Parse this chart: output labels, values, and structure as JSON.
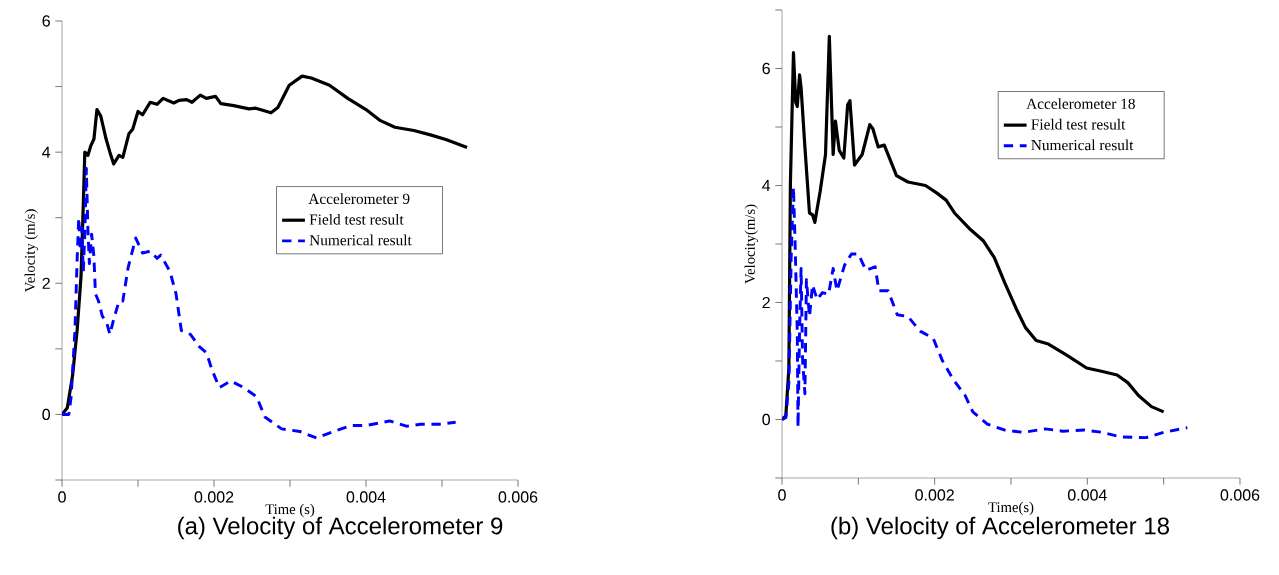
{
  "chart_data": [
    {
      "type": "line",
      "title": "(a) Velocity of Accelerometer 9",
      "xlabel": "Time (s)",
      "ylabel": "Velocity (m/s)",
      "legend_title": "Accelerometer 9",
      "legend": "right",
      "xlim": [
        0,
        0.006
      ],
      "ylim": [
        -1,
        6
      ],
      "xticks": [
        0,
        {
          "value": 0.001,
          "label": null
        },
        0.002,
        {
          "value": 0.003,
          "label": null
        },
        0.004,
        {
          "value": 0.005,
          "label": null
        },
        0.006
      ],
      "yticks": [
        {
          "value": -1,
          "label": null
        },
        0,
        {
          "value": 1,
          "label": null
        },
        2,
        {
          "value": 3,
          "label": null
        },
        4,
        {
          "value": 5,
          "label": null
        },
        6
      ],
      "series": [
        {
          "name": "Field test result",
          "color": "#000000",
          "line_style": "solid",
          "x": [
            0,
            7e-05,
            0.00014,
            0.0002,
            0.00025,
            0.00028,
            0.0003,
            0.00034,
            0.00038,
            0.00042,
            0.00046,
            0.00051,
            0.00058,
            0.00063,
            0.00068,
            0.00075,
            0.0008,
            0.00088,
            0.00093,
            0.001,
            0.00106,
            0.00116,
            0.00125,
            0.00133,
            0.00147,
            0.00154,
            0.00164,
            0.00171,
            0.00182,
            0.0019,
            0.00202,
            0.00209,
            0.00226,
            0.00246,
            0.00255,
            0.00275,
            0.00284,
            0.00299,
            0.00316,
            0.00328,
            0.00352,
            0.00376,
            0.004,
            0.00419,
            0.00438,
            0.00463,
            0.00486,
            0.00506,
            0.00533
          ],
          "values": [
            0,
            0.1,
            0.6,
            1.3,
            2.1,
            3.2,
            4.0,
            3.95,
            4.1,
            4.2,
            4.65,
            4.55,
            4.2,
            4.0,
            3.82,
            3.95,
            3.92,
            4.28,
            4.35,
            4.62,
            4.57,
            4.76,
            4.73,
            4.82,
            4.75,
            4.79,
            4.8,
            4.76,
            4.87,
            4.82,
            4.85,
            4.74,
            4.71,
            4.66,
            4.67,
            4.6,
            4.68,
            5.02,
            5.16,
            5.13,
            5.02,
            4.82,
            4.65,
            4.48,
            4.38,
            4.33,
            4.26,
            4.19,
            4.07
          ]
        },
        {
          "name": "Numerical result",
          "color": "#0000ff",
          "line_style": "dashed",
          "x": [
            0,
            9e-05,
            0.00012,
            0.00017,
            0.0002,
            0.00022,
            0.00024,
            0.00026,
            0.00028,
            0.0003,
            0.00032,
            0.00034,
            0.00036,
            0.00039,
            0.00042,
            0.00044,
            0.00048,
            0.00053,
            0.00059,
            0.00063,
            0.00068,
            0.00075,
            0.0008,
            0.00087,
            0.00097,
            0.00106,
            0.00116,
            0.00125,
            0.0013,
            0.00142,
            0.0015,
            0.00157,
            0.00169,
            0.00181,
            0.0019,
            0.00198,
            0.00207,
            0.00222,
            0.00239,
            0.00256,
            0.00267,
            0.00289,
            0.00313,
            0.00335,
            0.00357,
            0.00381,
            0.004,
            0.00431,
            0.00453,
            0.00472,
            0.00496,
            0.00518
          ],
          "values": [
            0,
            0,
            0.27,
            1.28,
            2.4,
            3.0,
            2.5,
            2.85,
            2.18,
            2.75,
            3.75,
            2.85,
            2.3,
            2.75,
            2.4,
            1.84,
            1.73,
            1.5,
            1.39,
            1.22,
            1.45,
            1.73,
            1.73,
            2.24,
            2.69,
            2.46,
            2.49,
            2.38,
            2.43,
            2.18,
            1.84,
            1.28,
            1.22,
            1.03,
            0.94,
            0.66,
            0.41,
            0.51,
            0.41,
            0.27,
            -0.04,
            -0.22,
            -0.26,
            -0.36,
            -0.26,
            -0.17,
            -0.17,
            -0.1,
            -0.18,
            -0.15,
            -0.15,
            -0.12
          ]
        }
      ]
    },
    {
      "type": "line",
      "title": "(b) Velocity of Accelerometer 18",
      "xlabel": "Time(s)",
      "ylabel": "Velocity(m/s)",
      "legend_title": "Accelerometer 18",
      "legend": "top right",
      "xlim": [
        0,
        0.006
      ],
      "ylim": [
        -1,
        7
      ],
      "xticks": [
        0,
        {
          "value": 0.001,
          "label": null
        },
        0.002,
        {
          "value": 0.003,
          "label": null
        },
        0.004,
        {
          "value": 0.005,
          "label": null
        },
        0.006
      ],
      "yticks": [
        {
          "value": -1,
          "label": null
        },
        0,
        {
          "value": 1,
          "label": null
        },
        2,
        {
          "value": 3,
          "label": null
        },
        4,
        {
          "value": 5,
          "label": null
        },
        6,
        {
          "value": 7,
          "label": null
        }
      ],
      "series": [
        {
          "name": "Field test result",
          "color": "#000000",
          "line_style": "solid",
          "x": [
            0,
            5e-05,
            9e-05,
            0.00011,
            0.00015,
            0.00018,
            0.0002,
            0.00023,
            0.00025,
            0.0003,
            0.00036,
            0.0004,
            0.00043,
            0.0005,
            0.00057,
            0.00062,
            0.00067,
            0.0007,
            0.00075,
            0.00081,
            0.00086,
            0.00089,
            0.00095,
            0.00105,
            0.00115,
            0.00119,
            0.00126,
            0.00134,
            0.0015,
            0.00165,
            0.00188,
            0.00203,
            0.00215,
            0.00226,
            0.00245,
            0.00264,
            0.00278,
            0.00292,
            0.00307,
            0.00319,
            0.00333,
            0.00349,
            0.00373,
            0.00399,
            0.0042,
            0.00439,
            0.00453,
            0.00467,
            0.00484,
            0.005
          ],
          "values": [
            0,
            0.06,
            0.88,
            4.03,
            6.27,
            5.42,
            5.35,
            5.89,
            5.67,
            4.66,
            3.53,
            3.5,
            3.37,
            3.9,
            4.53,
            6.55,
            4.53,
            5.1,
            4.6,
            4.47,
            5.38,
            5.45,
            4.35,
            4.53,
            5.04,
            4.97,
            4.66,
            4.69,
            4.17,
            4.06,
            4.0,
            3.87,
            3.75,
            3.53,
            3.27,
            3.05,
            2.77,
            2.33,
            1.89,
            1.57,
            1.35,
            1.29,
            1.1,
            0.88,
            0.82,
            0.76,
            0.63,
            0.41,
            0.22,
            0.13
          ]
        },
        {
          "name": "Numerical result",
          "color": "#0000ff",
          "line_style": "dashed",
          "x": [
            0,
            5e-05,
            9e-05,
            0.00012,
            0.00015,
            0.00017,
            0.0002,
            0.00021,
            0.00023,
            0.00025,
            0.00027,
            0.0003,
            0.00032,
            0.00036,
            0.0004,
            0.00046,
            0.00053,
            0.00061,
            0.00067,
            0.00072,
            0.00082,
            0.00091,
            0.001,
            0.0011,
            0.00122,
            0.00127,
            0.00139,
            0.00151,
            0.00165,
            0.00181,
            0.00198,
            0.0021,
            0.00224,
            0.0024,
            0.0025,
            0.00269,
            0.00292,
            0.00316,
            0.00345,
            0.00368,
            0.00396,
            0.0042,
            0.00444,
            0.00477,
            0.005,
            0.00531
          ],
          "values": [
            0,
            0.03,
            0.63,
            2.77,
            3.97,
            3.09,
            1.51,
            -0.13,
            1.51,
            2.58,
            1.01,
            0.44,
            2.39,
            1.76,
            2.3,
            2.05,
            2.17,
            2.14,
            2.58,
            2.2,
            2.64,
            2.83,
            2.83,
            2.55,
            2.61,
            2.2,
            2.2,
            1.79,
            1.76,
            1.51,
            1.39,
            1.01,
            0.69,
            0.41,
            0.13,
            -0.08,
            -0.18,
            -0.22,
            -0.16,
            -0.2,
            -0.18,
            -0.22,
            -0.3,
            -0.31,
            -0.22,
            -0.14
          ]
        }
      ]
    }
  ]
}
